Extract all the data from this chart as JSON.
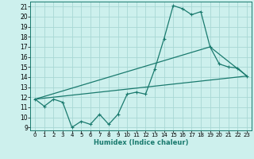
{
  "title": "",
  "xlabel": "Humidex (Indice chaleur)",
  "ylabel": "",
  "bg_color": "#cdf0ed",
  "grid_color": "#a8d8d4",
  "line_color": "#1a7a6e",
  "x_range": [
    -0.5,
    23.5
  ],
  "y_range": [
    8.7,
    21.5
  ],
  "yticks": [
    9,
    10,
    11,
    12,
    13,
    14,
    15,
    16,
    17,
    18,
    19,
    20,
    21
  ],
  "xticks": [
    0,
    1,
    2,
    3,
    4,
    5,
    6,
    7,
    8,
    9,
    10,
    11,
    12,
    13,
    14,
    15,
    16,
    17,
    18,
    19,
    20,
    21,
    22,
    23
  ],
  "series1_x": [
    0,
    1,
    2,
    3,
    4,
    5,
    6,
    7,
    8,
    9,
    10,
    11,
    12,
    13,
    14,
    15,
    16,
    17,
    18,
    19,
    20,
    21,
    22,
    23
  ],
  "series1_y": [
    11.8,
    11.1,
    11.8,
    11.5,
    9.0,
    9.6,
    9.3,
    10.3,
    9.3,
    10.3,
    12.3,
    12.5,
    12.3,
    14.8,
    17.8,
    21.1,
    20.8,
    20.2,
    20.5,
    17.0,
    15.3,
    15.0,
    14.9,
    14.1
  ],
  "series2_x": [
    0,
    23
  ],
  "series2_y": [
    11.8,
    14.1
  ],
  "series3_x": [
    0,
    19,
    23
  ],
  "series3_y": [
    11.8,
    17.0,
    14.1
  ]
}
